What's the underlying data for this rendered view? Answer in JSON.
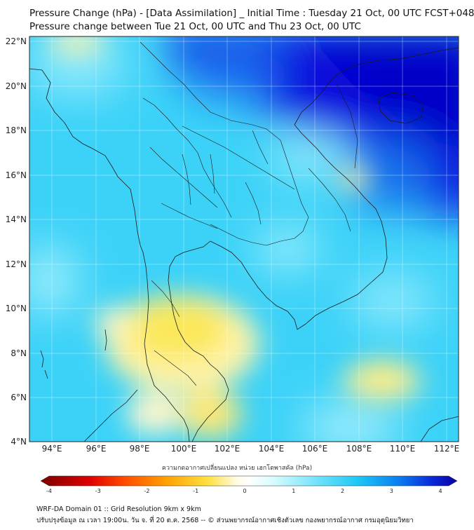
{
  "title_line1": "Pressure Change (hPa) - [Data Assimilation] _ Initial Time : Tuesday 21 Oct, 00 UTC FCST+048",
  "title_line2": "Pressure change between Tue 21 Oct, 00 UTC and Thu 23 Oct, 00 UTC",
  "lat_labels": [
    "22°N",
    "20°N",
    "18°N",
    "16°N",
    "14°N",
    "12°N",
    "10°N",
    "8°N",
    "6°N",
    "4°N"
  ],
  "lon_labels": [
    "94°E",
    "96°E",
    "98°E",
    "100°E",
    "102°E",
    "104°E",
    "106°E",
    "108°E",
    "110°E",
    "112°E"
  ],
  "colorbar": {
    "title": "ความกดอากาศเปลี่ยนแปลง หน่วย เฮกโตพาสคัล (hPa)",
    "tick_labels": [
      "-4",
      "-3",
      "-2",
      "-1",
      "0",
      "1",
      "2",
      "3",
      "4"
    ],
    "colors": {
      "min": "#7a0000",
      "neg_mid": "#ff2a00",
      "neg_low": "#ffd800",
      "zero": "#ffffff",
      "pos_low": "#a8f0ff",
      "pos_mid": "#1ec8f5",
      "max": "#0a00a0"
    }
  },
  "footer_line1": "WRF-DA Domain 01 :: Grid Resolution 9km x 9km",
  "footer_line2": "ปรับปรุงข้อมูล ณ เวลา 19:00น. วัน จ. ที่ 20 ต.ค. 2568 -- © ส่วนพยากรณ์อากาศเชิงตัวเลข กองพยากรณ์อากาศ กรมอุตุนิยมวิทยา"
}
